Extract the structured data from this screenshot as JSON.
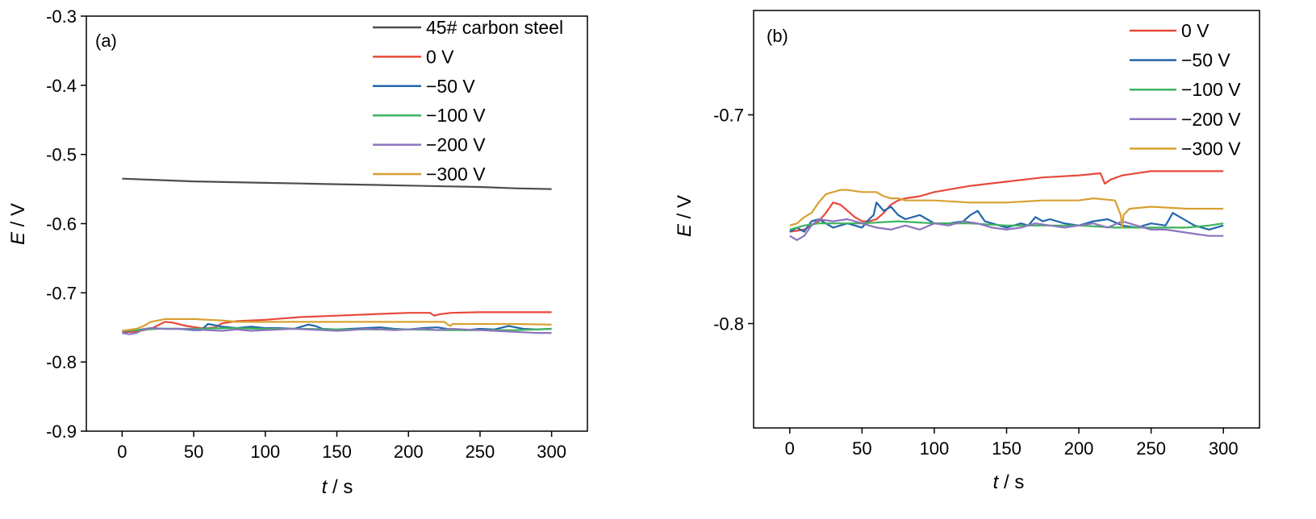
{
  "chart_data": [
    {
      "type": "line",
      "panel_label": "(a)",
      "xlabel_var": "t",
      "xlabel_unit": " / s",
      "ylabel_var": "E",
      "ylabel_unit": " / V",
      "xlim": [
        -25,
        325
      ],
      "ylim": [
        -0.9,
        -0.3
      ],
      "xticks": [
        "0",
        "50",
        "100",
        "150",
        "200",
        "250",
        "300"
      ],
      "xtick_values": [
        0,
        50,
        100,
        150,
        200,
        250,
        300
      ],
      "yticks": [
        "-0.3",
        "-0.4",
        "-0.5",
        "-0.6",
        "-0.7",
        "-0.8",
        "-0.9"
      ],
      "ytick_values": [
        -0.3,
        -0.4,
        -0.5,
        -0.6,
        -0.7,
        -0.8,
        -0.9
      ],
      "legend_position": "top-right",
      "series": [
        {
          "name": "45# carbon steel",
          "color": "#4d4d4d",
          "x": [
            0,
            25,
            50,
            75,
            100,
            125,
            150,
            175,
            200,
            225,
            250,
            275,
            300
          ],
          "y": [
            -0.535,
            -0.537,
            -0.539,
            -0.54,
            -0.541,
            -0.542,
            -0.543,
            -0.544,
            -0.545,
            -0.546,
            -0.547,
            -0.549,
            -0.55
          ]
        },
        {
          "name": "0 V",
          "color": "#e8493b",
          "x": [
            0,
            10,
            20,
            30,
            35,
            45,
            55,
            60,
            65,
            70,
            80,
            100,
            125,
            150,
            175,
            200,
            215,
            218,
            222,
            230,
            250,
            275,
            300
          ],
          "y": [
            -0.757,
            -0.756,
            -0.752,
            -0.742,
            -0.743,
            -0.748,
            -0.751,
            -0.751,
            -0.75,
            -0.744,
            -0.741,
            -0.739,
            -0.735,
            -0.733,
            -0.731,
            -0.729,
            -0.729,
            -0.733,
            -0.731,
            -0.729,
            -0.728,
            -0.728,
            -0.728
          ]
        },
        {
          "name": "−50 V",
          "color": "#2166ac",
          "x": [
            0,
            10,
            20,
            30,
            40,
            50,
            55,
            60,
            65,
            70,
            80,
            90,
            100,
            110,
            120,
            130,
            135,
            140,
            150,
            160,
            170,
            180,
            190,
            200,
            210,
            220,
            230,
            240,
            250,
            260,
            270,
            280,
            290,
            300
          ],
          "y": [
            -0.756,
            -0.754,
            -0.751,
            -0.752,
            -0.752,
            -0.754,
            -0.754,
            -0.745,
            -0.747,
            -0.749,
            -0.751,
            -0.749,
            -0.751,
            -0.751,
            -0.752,
            -0.746,
            -0.748,
            -0.752,
            -0.753,
            -0.752,
            -0.751,
            -0.75,
            -0.752,
            -0.753,
            -0.751,
            -0.75,
            -0.753,
            -0.754,
            -0.752,
            -0.753,
            -0.748,
            -0.752,
            -0.753,
            -0.752
          ]
        },
        {
          "name": "−100 V",
          "color": "#3cb35c",
          "x": [
            0,
            25,
            50,
            75,
            100,
            125,
            150,
            175,
            200,
            225,
            250,
            275,
            300
          ],
          "y": [
            -0.755,
            -0.752,
            -0.752,
            -0.751,
            -0.752,
            -0.752,
            -0.753,
            -0.753,
            -0.753,
            -0.754,
            -0.754,
            -0.754,
            -0.752
          ]
        },
        {
          "name": "−200 V",
          "color": "#8d74bd",
          "x": [
            0,
            5,
            10,
            15,
            20,
            30,
            40,
            50,
            60,
            70,
            80,
            90,
            100,
            110,
            120,
            130,
            140,
            150,
            160,
            170,
            180,
            190,
            200,
            210,
            220,
            230,
            240,
            250,
            260,
            270,
            280,
            290,
            300
          ],
          "y": [
            -0.758,
            -0.76,
            -0.758,
            -0.753,
            -0.751,
            -0.752,
            -0.752,
            -0.753,
            -0.754,
            -0.755,
            -0.753,
            -0.755,
            -0.754,
            -0.753,
            -0.752,
            -0.753,
            -0.754,
            -0.755,
            -0.754,
            -0.752,
            -0.753,
            -0.754,
            -0.753,
            -0.752,
            -0.754,
            -0.752,
            -0.753,
            -0.754,
            -0.755,
            -0.756,
            -0.757,
            -0.758,
            -0.758
          ]
        },
        {
          "name": "−300 V",
          "color": "#d8a032",
          "x": [
            0,
            10,
            15,
            20,
            25,
            30,
            40,
            50,
            60,
            70,
            75,
            80,
            100,
            125,
            150,
            175,
            200,
            225,
            229,
            231,
            235,
            250,
            275,
            300
          ],
          "y": [
            -0.755,
            -0.752,
            -0.748,
            -0.742,
            -0.74,
            -0.738,
            -0.738,
            -0.738,
            -0.739,
            -0.74,
            -0.741,
            -0.742,
            -0.742,
            -0.742,
            -0.742,
            -0.742,
            -0.742,
            -0.742,
            -0.748,
            -0.745,
            -0.745,
            -0.745,
            -0.745,
            -0.746
          ]
        }
      ]
    },
    {
      "type": "line",
      "panel_label": "(b)",
      "xlabel_var": "t",
      "xlabel_unit": " / s",
      "ylabel_var": "E",
      "ylabel_unit": " / V",
      "xlim": [
        -25,
        325
      ],
      "ylim": [
        -0.85,
        -0.65
      ],
      "xticks": [
        "0",
        "50",
        "100",
        "150",
        "200",
        "250",
        "300"
      ],
      "xtick_values": [
        0,
        50,
        100,
        150,
        200,
        250,
        300
      ],
      "yticks": [
        "-0.7",
        "-0.8"
      ],
      "ytick_values": [
        -0.7,
        -0.8
      ],
      "legend_position": "top-right",
      "series": [
        {
          "name": "0 V",
          "color": "#e8493b",
          "x": [
            0,
            10,
            20,
            25,
            30,
            35,
            40,
            45,
            50,
            55,
            60,
            65,
            70,
            75,
            80,
            90,
            100,
            125,
            150,
            175,
            200,
            215,
            218,
            222,
            230,
            250,
            275,
            300
          ],
          "y": [
            -0.756,
            -0.755,
            -0.751,
            -0.747,
            -0.742,
            -0.743,
            -0.746,
            -0.749,
            -0.751,
            -0.751,
            -0.75,
            -0.747,
            -0.743,
            -0.741,
            -0.74,
            -0.739,
            -0.737,
            -0.734,
            -0.732,
            -0.73,
            -0.729,
            -0.728,
            -0.733,
            -0.731,
            -0.729,
            -0.727,
            -0.727,
            -0.727
          ]
        },
        {
          "name": "−50 V",
          "color": "#2166ac",
          "x": [
            0,
            5,
            10,
            15,
            20,
            25,
            30,
            40,
            50,
            55,
            58,
            60,
            65,
            70,
            75,
            80,
            90,
            100,
            110,
            120,
            125,
            130,
            135,
            140,
            150,
            160,
            165,
            170,
            175,
            180,
            190,
            200,
            210,
            220,
            230,
            240,
            250,
            260,
            265,
            270,
            280,
            290,
            300
          ],
          "y": [
            -0.756,
            -0.754,
            -0.756,
            -0.751,
            -0.75,
            -0.752,
            -0.754,
            -0.752,
            -0.754,
            -0.75,
            -0.748,
            -0.742,
            -0.746,
            -0.744,
            -0.748,
            -0.75,
            -0.748,
            -0.752,
            -0.752,
            -0.751,
            -0.748,
            -0.746,
            -0.751,
            -0.752,
            -0.754,
            -0.752,
            -0.753,
            -0.749,
            -0.751,
            -0.75,
            -0.752,
            -0.753,
            -0.751,
            -0.75,
            -0.753,
            -0.754,
            -0.752,
            -0.753,
            -0.747,
            -0.749,
            -0.753,
            -0.755,
            -0.753
          ]
        },
        {
          "name": "−100 V",
          "color": "#3cb35c",
          "x": [
            0,
            10,
            20,
            30,
            50,
            75,
            100,
            125,
            150,
            175,
            200,
            225,
            250,
            275,
            290,
            300
          ],
          "y": [
            -0.755,
            -0.753,
            -0.752,
            -0.752,
            -0.752,
            -0.751,
            -0.752,
            -0.752,
            -0.753,
            -0.753,
            -0.753,
            -0.754,
            -0.754,
            -0.754,
            -0.753,
            -0.752
          ]
        },
        {
          "name": "−200 V",
          "color": "#8d74bd",
          "x": [
            0,
            5,
            10,
            15,
            20,
            30,
            40,
            50,
            60,
            70,
            80,
            90,
            100,
            110,
            120,
            130,
            140,
            150,
            160,
            170,
            180,
            190,
            200,
            210,
            220,
            230,
            240,
            250,
            260,
            270,
            280,
            290,
            300
          ],
          "y": [
            -0.758,
            -0.76,
            -0.758,
            -0.753,
            -0.75,
            -0.751,
            -0.75,
            -0.752,
            -0.754,
            -0.755,
            -0.753,
            -0.755,
            -0.752,
            -0.753,
            -0.751,
            -0.752,
            -0.754,
            -0.755,
            -0.754,
            -0.752,
            -0.753,
            -0.754,
            -0.753,
            -0.752,
            -0.754,
            -0.751,
            -0.753,
            -0.755,
            -0.755,
            -0.756,
            -0.757,
            -0.758,
            -0.758
          ]
        },
        {
          "name": "−300 V",
          "color": "#d8a032",
          "x": [
            0,
            5,
            10,
            15,
            20,
            25,
            30,
            35,
            40,
            50,
            60,
            65,
            70,
            75,
            80,
            90,
            100,
            125,
            150,
            175,
            200,
            210,
            225,
            229,
            230,
            231,
            235,
            250,
            275,
            300
          ],
          "y": [
            -0.753,
            -0.752,
            -0.749,
            -0.747,
            -0.742,
            -0.738,
            -0.737,
            -0.736,
            -0.736,
            -0.737,
            -0.737,
            -0.739,
            -0.74,
            -0.74,
            -0.741,
            -0.741,
            -0.741,
            -0.742,
            -0.742,
            -0.741,
            -0.741,
            -0.74,
            -0.741,
            -0.748,
            -0.754,
            -0.748,
            -0.745,
            -0.744,
            -0.745,
            -0.745
          ]
        }
      ]
    }
  ]
}
